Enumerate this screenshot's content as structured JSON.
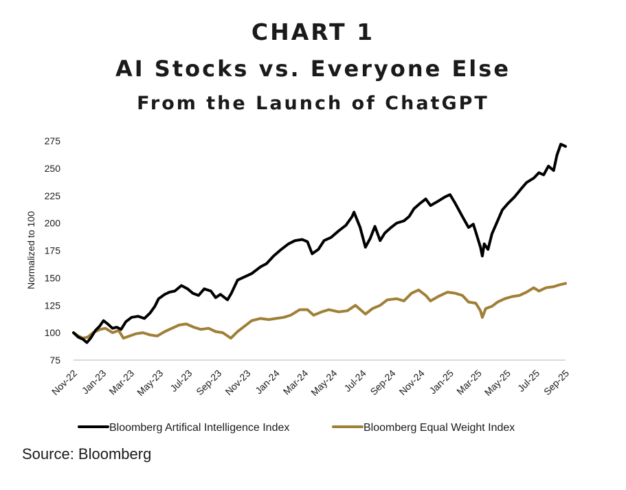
{
  "header": {
    "chart_number": "CHART 1",
    "title": "AI Stocks vs. Everyone Else",
    "subtitle": "From the Launch of ChatGPT"
  },
  "source": "Source: Bloomberg",
  "colors": {
    "ai_index": "#000000",
    "equal_weight": "#A07F36",
    "axis": "#d9d9d9"
  },
  "chart_data": {
    "type": "line",
    "title": "AI Stocks vs. Everyone Else",
    "subtitle": "From the Launch of ChatGPT",
    "xlabel": "",
    "ylabel": "Normalized to 100",
    "ylim": [
      75,
      275
    ],
    "yticks": [
      75,
      100,
      125,
      150,
      175,
      200,
      225,
      250,
      275
    ],
    "xlim": [
      "2022-11-30",
      "2025-09-30"
    ],
    "xticks": [
      {
        "date": "2022-11-30",
        "label": "Nov-22"
      },
      {
        "date": "2023-01-30",
        "label": "Jan-23"
      },
      {
        "date": "2023-03-30",
        "label": "Mar-23"
      },
      {
        "date": "2023-05-30",
        "label": "May-23"
      },
      {
        "date": "2023-07-30",
        "label": "Jul-23"
      },
      {
        "date": "2023-09-30",
        "label": "Sep-23"
      },
      {
        "date": "2023-11-30",
        "label": "Nov-23"
      },
      {
        "date": "2024-01-30",
        "label": "Jan-24"
      },
      {
        "date": "2024-03-30",
        "label": "Mar-24"
      },
      {
        "date": "2024-05-30",
        "label": "May-24"
      },
      {
        "date": "2024-07-30",
        "label": "Jul-24"
      },
      {
        "date": "2024-09-30",
        "label": "Sep-24"
      },
      {
        "date": "2024-11-30",
        "label": "Nov-24"
      },
      {
        "date": "2025-01-30",
        "label": "Jan-25"
      },
      {
        "date": "2025-03-30",
        "label": "Mar-25"
      },
      {
        "date": "2025-05-30",
        "label": "May-25"
      },
      {
        "date": "2025-07-30",
        "label": "Jul-25"
      },
      {
        "date": "2025-09-30",
        "label": "Sep-25"
      }
    ],
    "grid": false,
    "legend_position": "bottom",
    "series": [
      {
        "name": "Bloomberg Artifical Intelligence Index",
        "color": "#000000",
        "points": [
          [
            "2022-11-30",
            100
          ],
          [
            "2022-12-10",
            96
          ],
          [
            "2022-12-20",
            94
          ],
          [
            "2022-12-28",
            91
          ],
          [
            "2023-01-05",
            95
          ],
          [
            "2023-01-15",
            102
          ],
          [
            "2023-01-24",
            106
          ],
          [
            "2023-02-01",
            111
          ],
          [
            "2023-02-10",
            108
          ],
          [
            "2023-02-20",
            104
          ],
          [
            "2023-03-01",
            105
          ],
          [
            "2023-03-10",
            103
          ],
          [
            "2023-03-20",
            110
          ],
          [
            "2023-04-01",
            114
          ],
          [
            "2023-04-15",
            115
          ],
          [
            "2023-04-28",
            113
          ],
          [
            "2023-05-10",
            118
          ],
          [
            "2023-05-20",
            124
          ],
          [
            "2023-05-28",
            131
          ],
          [
            "2023-06-10",
            135
          ],
          [
            "2023-06-20",
            137
          ],
          [
            "2023-07-01",
            138
          ],
          [
            "2023-07-15",
            143
          ],
          [
            "2023-07-28",
            140
          ],
          [
            "2023-08-08",
            136
          ],
          [
            "2023-08-20",
            134
          ],
          [
            "2023-09-01",
            140
          ],
          [
            "2023-09-15",
            138
          ],
          [
            "2023-09-25",
            132
          ],
          [
            "2023-10-05",
            135
          ],
          [
            "2023-10-20",
            130
          ],
          [
            "2023-10-28",
            136
          ],
          [
            "2023-11-10",
            148
          ],
          [
            "2023-11-25",
            151
          ],
          [
            "2023-12-10",
            154
          ],
          [
            "2023-12-28",
            160
          ],
          [
            "2024-01-10",
            163
          ],
          [
            "2024-01-25",
            170
          ],
          [
            "2024-02-10",
            176
          ],
          [
            "2024-02-25",
            181
          ],
          [
            "2024-03-10",
            184
          ],
          [
            "2024-03-25",
            185
          ],
          [
            "2024-04-05",
            183
          ],
          [
            "2024-04-15",
            172
          ],
          [
            "2024-04-28",
            176
          ],
          [
            "2024-05-10",
            184
          ],
          [
            "2024-05-25",
            187
          ],
          [
            "2024-06-10",
            193
          ],
          [
            "2024-06-25",
            198
          ],
          [
            "2024-07-08",
            206
          ],
          [
            "2024-07-12",
            210
          ],
          [
            "2024-07-25",
            196
          ],
          [
            "2024-08-05",
            178
          ],
          [
            "2024-08-15",
            186
          ],
          [
            "2024-08-25",
            197
          ],
          [
            "2024-09-05",
            184
          ],
          [
            "2024-09-15",
            191
          ],
          [
            "2024-09-28",
            196
          ],
          [
            "2024-10-10",
            200
          ],
          [
            "2024-10-25",
            202
          ],
          [
            "2024-11-05",
            206
          ],
          [
            "2024-11-15",
            213
          ],
          [
            "2024-11-28",
            218
          ],
          [
            "2024-12-10",
            222
          ],
          [
            "2024-12-20",
            216
          ],
          [
            "2025-01-05",
            220
          ],
          [
            "2025-01-20",
            224
          ],
          [
            "2025-01-30",
            226
          ],
          [
            "2025-02-10",
            218
          ],
          [
            "2025-02-25",
            206
          ],
          [
            "2025-03-10",
            196
          ],
          [
            "2025-03-20",
            199
          ],
          [
            "2025-03-28",
            188
          ],
          [
            "2025-04-04",
            178
          ],
          [
            "2025-04-08",
            170
          ],
          [
            "2025-04-12",
            181
          ],
          [
            "2025-04-20",
            176
          ],
          [
            "2025-04-28",
            190
          ],
          [
            "2025-05-10",
            202
          ],
          [
            "2025-05-20",
            212
          ],
          [
            "2025-06-01",
            218
          ],
          [
            "2025-06-15",
            224
          ],
          [
            "2025-06-28",
            231
          ],
          [
            "2025-07-10",
            237
          ],
          [
            "2025-07-25",
            241
          ],
          [
            "2025-08-05",
            246
          ],
          [
            "2025-08-15",
            244
          ],
          [
            "2025-08-25",
            252
          ],
          [
            "2025-09-05",
            248
          ],
          [
            "2025-09-12",
            262
          ],
          [
            "2025-09-20",
            272
          ],
          [
            "2025-09-30",
            270
          ]
        ]
      },
      {
        "name": "Bloomberg Equal Weight Index",
        "color": "#A07F36",
        "points": [
          [
            "2022-11-30",
            100
          ],
          [
            "2022-12-10",
            97
          ],
          [
            "2022-12-20",
            95
          ],
          [
            "2022-12-30",
            96
          ],
          [
            "2023-01-10",
            100
          ],
          [
            "2023-01-25",
            103
          ],
          [
            "2023-02-05",
            104
          ],
          [
            "2023-02-20",
            100
          ],
          [
            "2023-03-05",
            102
          ],
          [
            "2023-03-15",
            95
          ],
          [
            "2023-03-28",
            97
          ],
          [
            "2023-04-10",
            99
          ],
          [
            "2023-04-25",
            100
          ],
          [
            "2023-05-10",
            98
          ],
          [
            "2023-05-25",
            97
          ],
          [
            "2023-06-10",
            101
          ],
          [
            "2023-06-25",
            104
          ],
          [
            "2023-07-10",
            107
          ],
          [
            "2023-07-25",
            108
          ],
          [
            "2023-08-10",
            105
          ],
          [
            "2023-08-25",
            103
          ],
          [
            "2023-09-10",
            104
          ],
          [
            "2023-09-25",
            101
          ],
          [
            "2023-10-10",
            100
          ],
          [
            "2023-10-27",
            95
          ],
          [
            "2023-11-10",
            101
          ],
          [
            "2023-11-25",
            106
          ],
          [
            "2023-12-10",
            111
          ],
          [
            "2023-12-28",
            113
          ],
          [
            "2024-01-15",
            112
          ],
          [
            "2024-01-30",
            113
          ],
          [
            "2024-02-15",
            114
          ],
          [
            "2024-03-01",
            116
          ],
          [
            "2024-03-20",
            121
          ],
          [
            "2024-04-05",
            121
          ],
          [
            "2024-04-18",
            116
          ],
          [
            "2024-05-05",
            119
          ],
          [
            "2024-05-20",
            121
          ],
          [
            "2024-06-10",
            119
          ],
          [
            "2024-06-28",
            120
          ],
          [
            "2024-07-15",
            125
          ],
          [
            "2024-08-05",
            117
          ],
          [
            "2024-08-20",
            122
          ],
          [
            "2024-09-05",
            125
          ],
          [
            "2024-09-20",
            130
          ],
          [
            "2024-10-10",
            131
          ],
          [
            "2024-10-25",
            129
          ],
          [
            "2024-11-10",
            136
          ],
          [
            "2024-11-25",
            139
          ],
          [
            "2024-12-10",
            134
          ],
          [
            "2024-12-20",
            129
          ],
          [
            "2025-01-05",
            133
          ],
          [
            "2025-01-25",
            137
          ],
          [
            "2025-02-10",
            136
          ],
          [
            "2025-02-25",
            134
          ],
          [
            "2025-03-10",
            128
          ],
          [
            "2025-03-25",
            127
          ],
          [
            "2025-04-04",
            120
          ],
          [
            "2025-04-08",
            114
          ],
          [
            "2025-04-15",
            122
          ],
          [
            "2025-04-28",
            124
          ],
          [
            "2025-05-10",
            128
          ],
          [
            "2025-05-25",
            131
          ],
          [
            "2025-06-10",
            133
          ],
          [
            "2025-06-25",
            134
          ],
          [
            "2025-07-10",
            137
          ],
          [
            "2025-07-25",
            141
          ],
          [
            "2025-08-05",
            138
          ],
          [
            "2025-08-20",
            141
          ],
          [
            "2025-09-05",
            142
          ],
          [
            "2025-09-20",
            144
          ],
          [
            "2025-09-30",
            145
          ]
        ]
      }
    ]
  }
}
